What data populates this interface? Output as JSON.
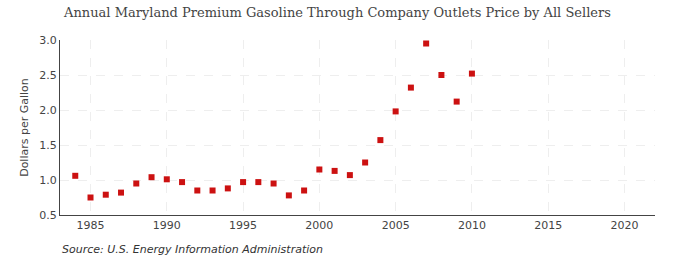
{
  "chart_data": {
    "type": "scatter",
    "title": "Annual Maryland Premium Gasoline Through Company Outlets Price by All Sellers",
    "y_label": "Dollars per Gallon",
    "annotations": [
      "Source: U.S. Energy Information Administration"
    ],
    "x": [
      1984,
      1985,
      1986,
      1987,
      1988,
      1989,
      1990,
      1991,
      1992,
      1993,
      1994,
      1995,
      1996,
      1997,
      1998,
      1999,
      2000,
      2001,
      2002,
      2003,
      2004,
      2005,
      2006,
      2007,
      2008,
      2009,
      2010
    ],
    "values": [
      1.06,
      0.75,
      0.79,
      0.82,
      0.95,
      1.04,
      1.01,
      0.97,
      0.85,
      0.85,
      0.88,
      0.97,
      0.97,
      0.95,
      0.78,
      0.85,
      1.15,
      1.13,
      1.07,
      1.25,
      1.57,
      1.98,
      2.32,
      2.95,
      2.5,
      2.12,
      2.52
    ],
    "color": "#cc1111",
    "marker": "square",
    "xlim": [
      1983,
      2022
    ],
    "ylim": [
      0.5,
      3.0
    ],
    "xticks": [
      1985,
      1990,
      1995,
      2000,
      2005,
      2010,
      2015,
      2020
    ],
    "yticks": [
      0.5,
      {
        "value": 1.0,
        "label": "1.0"
      },
      1.5,
      {
        "value": 2.0,
        "label": "2.0"
      },
      2.5,
      {
        "value": 3.0,
        "label": "3.0"
      }
    ],
    "grid": true
  }
}
